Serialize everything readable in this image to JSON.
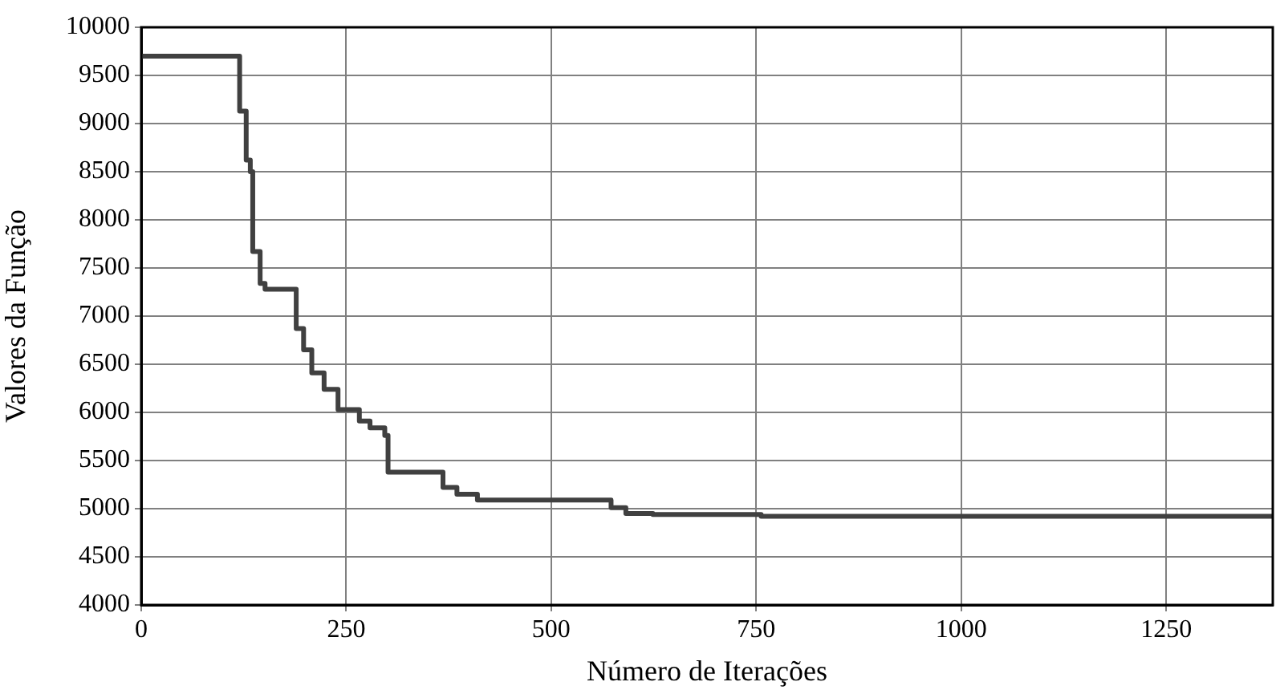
{
  "chart_data": {
    "type": "step",
    "xlabel": "Número de Iterações",
    "ylabel": "Valores da Função",
    "x": [
      0,
      120,
      128,
      133,
      136,
      145,
      151,
      189,
      198,
      208,
      223,
      240,
      266,
      279,
      297,
      301,
      368,
      385,
      410,
      573,
      591,
      624,
      756,
      1380
    ],
    "series": [
      {
        "color": "#404040",
        "values": [
          9700,
          9130,
          8620,
          8500,
          7670,
          7340,
          7280,
          6870,
          6650,
          6410,
          6240,
          6030,
          5910,
          5840,
          5760,
          5380,
          5220,
          5150,
          5090,
          5010,
          4950,
          4940,
          4920,
          4920
        ]
      }
    ],
    "xlim": [
      0,
      1380
    ],
    "xticks": [
      0,
      250,
      500,
      750,
      1000,
      1250
    ],
    "ylim": [
      4000,
      10000
    ],
    "yticks": [
      4000,
      4500,
      5000,
      5500,
      6000,
      6500,
      7000,
      7500,
      8000,
      8500,
      9000,
      9500,
      10000
    ],
    "grid": true,
    "legend": false,
    "marker": "none",
    "line_style": "solid"
  }
}
